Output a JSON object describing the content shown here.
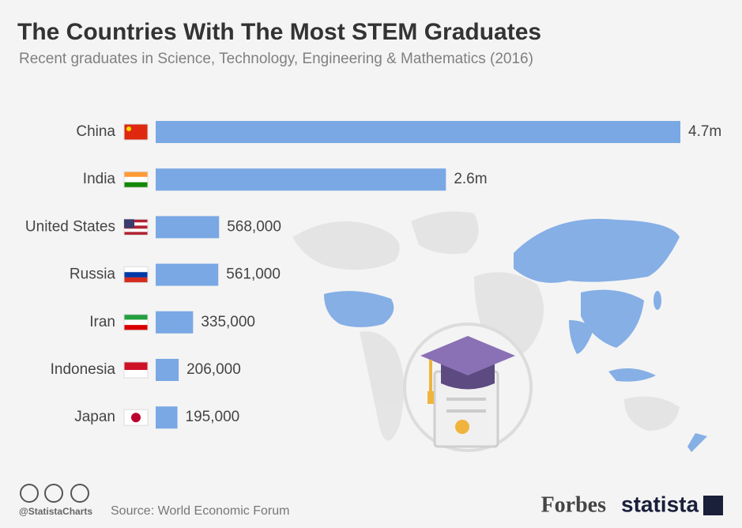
{
  "chart_data": {
    "type": "bar",
    "orientation": "horizontal",
    "title": "The Countries With The Most STEM Graduates",
    "subtitle": "Recent graduates in Science, Technology, Engineering & Mathematics (2016)",
    "categories": [
      "China",
      "India",
      "United States",
      "Russia",
      "Iran",
      "Indonesia",
      "Japan"
    ],
    "values": [
      4700000,
      2600000,
      568000,
      561000,
      335000,
      206000,
      195000
    ],
    "value_labels": [
      "4.7m",
      "2.6m",
      "568,000",
      "561,000",
      "335,000",
      "206,000",
      "195,000"
    ],
    "color": "#79a8e4",
    "credit": "@StatistaCharts",
    "source": "Source: World Economic Forum",
    "logos": [
      "Forbes",
      "statista"
    ]
  }
}
